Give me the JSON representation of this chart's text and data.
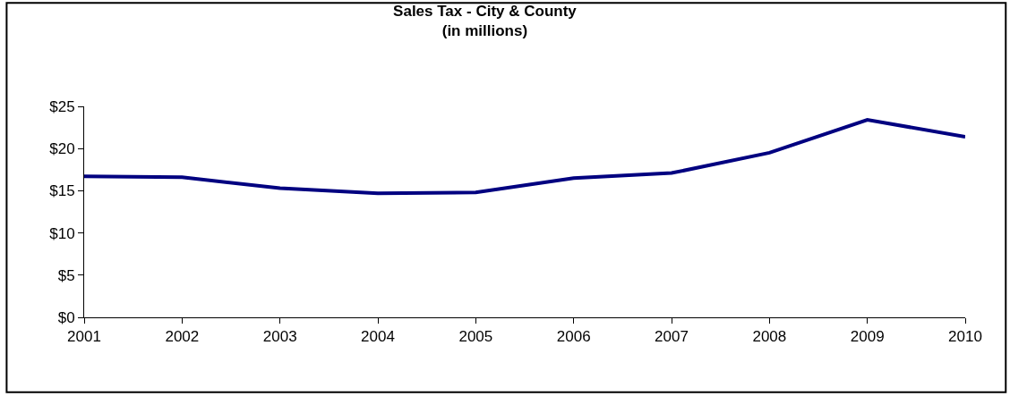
{
  "chart_data": {
    "type": "line",
    "title": "Sales Tax - City & County\n(in millions)",
    "categories": [
      "2001",
      "2002",
      "2003",
      "2004",
      "2005",
      "2006",
      "2007",
      "2008",
      "2009",
      "2010"
    ],
    "series": [
      {
        "color": "#000080",
        "values": [
          16.7,
          16.6,
          15.3,
          14.7,
          14.8,
          16.5,
          17.1,
          19.5,
          23.4,
          21.4
        ]
      }
    ],
    "ylim": [
      0,
      25
    ],
    "yticks": [
      {
        "value": 0,
        "label": "$0"
      },
      {
        "value": 5,
        "label": "$5"
      },
      {
        "value": 10,
        "label": "$10"
      },
      {
        "value": 15,
        "label": "$15"
      },
      {
        "value": 20,
        "label": "$20"
      },
      {
        "value": 25,
        "label": "$25"
      }
    ],
    "grid": false,
    "legend": false,
    "marker": "none",
    "line_style": "solid"
  }
}
